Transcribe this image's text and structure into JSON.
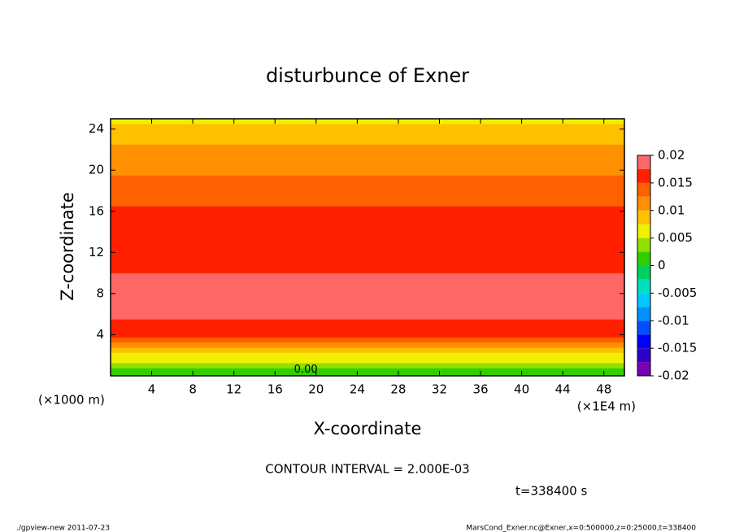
{
  "chart_data": {
    "type": "contour",
    "title": "disturbunce of Exner",
    "x_label": "X-coordinate",
    "y_label": "Z-coordinate",
    "x_unit": "(×1E4 m)",
    "y_unit": "(×1000 m)",
    "xlim": [
      0,
      50
    ],
    "xticks": [
      4,
      8,
      12,
      16,
      20,
      24,
      28,
      32,
      36,
      40,
      44,
      48
    ],
    "ylim": [
      0,
      25
    ],
    "yticks": [
      4,
      8,
      12,
      16,
      20,
      24
    ],
    "profile": {
      "z": [
        0,
        0.5,
        1,
        1.5,
        2,
        2.5,
        3,
        3.5,
        4,
        5,
        6,
        8,
        9,
        11,
        13,
        16,
        17,
        19,
        20,
        21,
        22,
        23,
        24,
        25
      ],
      "values": [
        0.0,
        0.001,
        0.003,
        0.005,
        0.007,
        0.009,
        0.011,
        0.013,
        0.015,
        0.017,
        0.019,
        0.019,
        0.018,
        0.017,
        0.016,
        0.015,
        0.014,
        0.013,
        0.012,
        0.011,
        0.01,
        0.009,
        0.008,
        0.007
      ]
    },
    "contour_label": "0.00",
    "colorbar": {
      "levels": [
        -0.02,
        -0.0175,
        -0.015,
        -0.0125,
        -0.01,
        -0.0075,
        -0.005,
        -0.0025,
        0,
        0.0025,
        0.005,
        0.0075,
        0.01,
        0.0125,
        0.015,
        0.0175,
        0.02
      ],
      "colors": [
        "#7a00b4",
        "#3000c8",
        "#0000ff",
        "#0050ff",
        "#0090ff",
        "#00c8ff",
        "#00e0c0",
        "#00d060",
        "#30d000",
        "#90e000",
        "#f0f000",
        "#ffc000",
        "#ff9000",
        "#ff6000",
        "#ff2000",
        "#ff6666"
      ],
      "ticks": [
        0.02,
        0.015,
        0.01,
        0.005,
        0,
        -0.005,
        -0.01,
        -0.015,
        -0.02
      ]
    },
    "contour_interval": "CONTOUR INTERVAL = 2.000E-03",
    "time": "t=338400 s",
    "footer_left": "./gpview-new  2011-07-23",
    "footer_right": "MarsCond_Exner.nc@Exner,x=0:500000,z=0:25000,t=338400"
  }
}
